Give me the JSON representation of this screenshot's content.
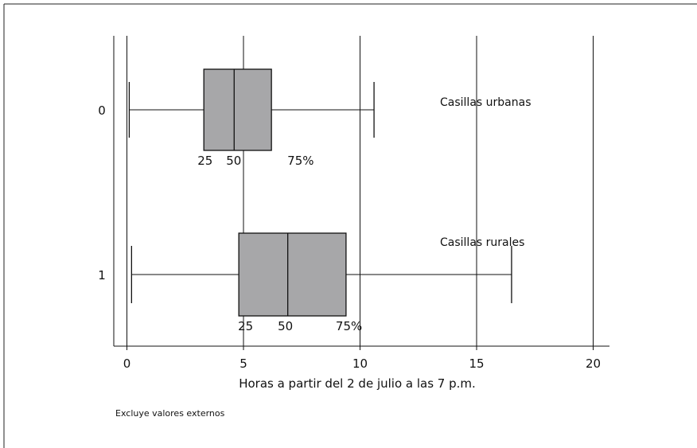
{
  "chart_data": {
    "type": "boxplot",
    "xlabel": "Horas a partir del 2 de julio a las 7 p.m.",
    "xlim": [
      -0.5,
      20.7
    ],
    "xticks": [
      0,
      5,
      10,
      15,
      20
    ],
    "grid": "vertical",
    "categories": [
      "0",
      "1"
    ],
    "series": [
      {
        "category": "0",
        "annotation": "Casillas urbanas",
        "whisker_low": 0.1,
        "q1": 3.3,
        "median": 4.6,
        "q3": 6.2,
        "whisker_high": 10.6,
        "percentile_labels": [
          "25",
          "50",
          "75%"
        ]
      },
      {
        "category": "1",
        "annotation": "Casillas rurales",
        "whisker_low": 0.2,
        "q1": 4.8,
        "median": 6.9,
        "q3": 9.4,
        "whisker_high": 16.5,
        "percentile_labels": [
          "25",
          "50",
          "75%"
        ]
      }
    ],
    "footnote": "Excluye valores externos",
    "colors": {
      "box_fill": "#a7a7a9",
      "line": "#111111"
    }
  }
}
